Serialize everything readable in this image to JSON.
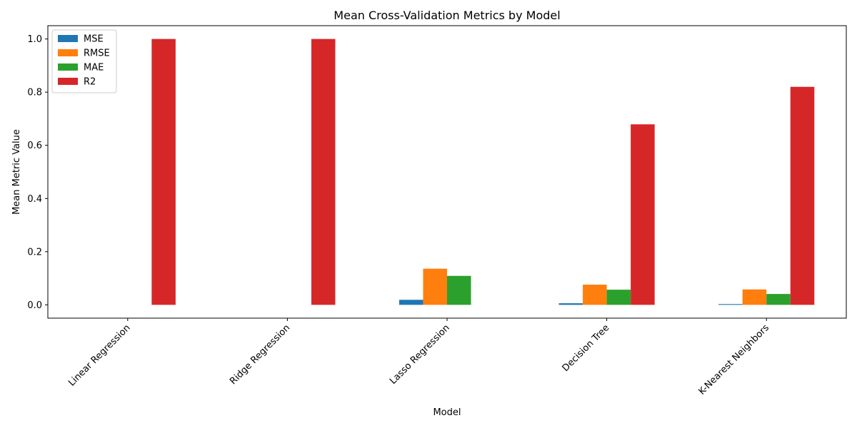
{
  "chart_data": {
    "type": "bar",
    "title": "Mean Cross-Validation Metrics by Model",
    "xlabel": "Model",
    "ylabel": "Mean Metric Value",
    "categories": [
      "Linear Regression",
      "Ridge Regression",
      "Lasso Regression",
      "Decision Tree",
      "K-Nearest Neighbors"
    ],
    "series": [
      {
        "name": "MSE",
        "color": "#1f77b4",
        "values": [
          0.0,
          0.0,
          0.019,
          0.006,
          0.003
        ]
      },
      {
        "name": "RMSE",
        "color": "#ff7f0e",
        "values": [
          0.0,
          0.0,
          0.136,
          0.076,
          0.058
        ]
      },
      {
        "name": "MAE",
        "color": "#2ca02c",
        "values": [
          0.0,
          0.0,
          0.109,
          0.057,
          0.041
        ]
      },
      {
        "name": "R2",
        "color": "#d62728",
        "values": [
          1.0,
          1.0,
          0.0,
          0.679,
          0.82
        ]
      }
    ],
    "ylim": [
      -0.05,
      1.05
    ],
    "yticks": [
      0.0,
      0.2,
      0.4,
      0.6,
      0.8,
      1.0
    ],
    "ytick_labels": [
      "0.0",
      "0.2",
      "0.4",
      "0.6",
      "0.8",
      "1.0"
    ],
    "legend_position": "upper-left",
    "grid": false
  }
}
